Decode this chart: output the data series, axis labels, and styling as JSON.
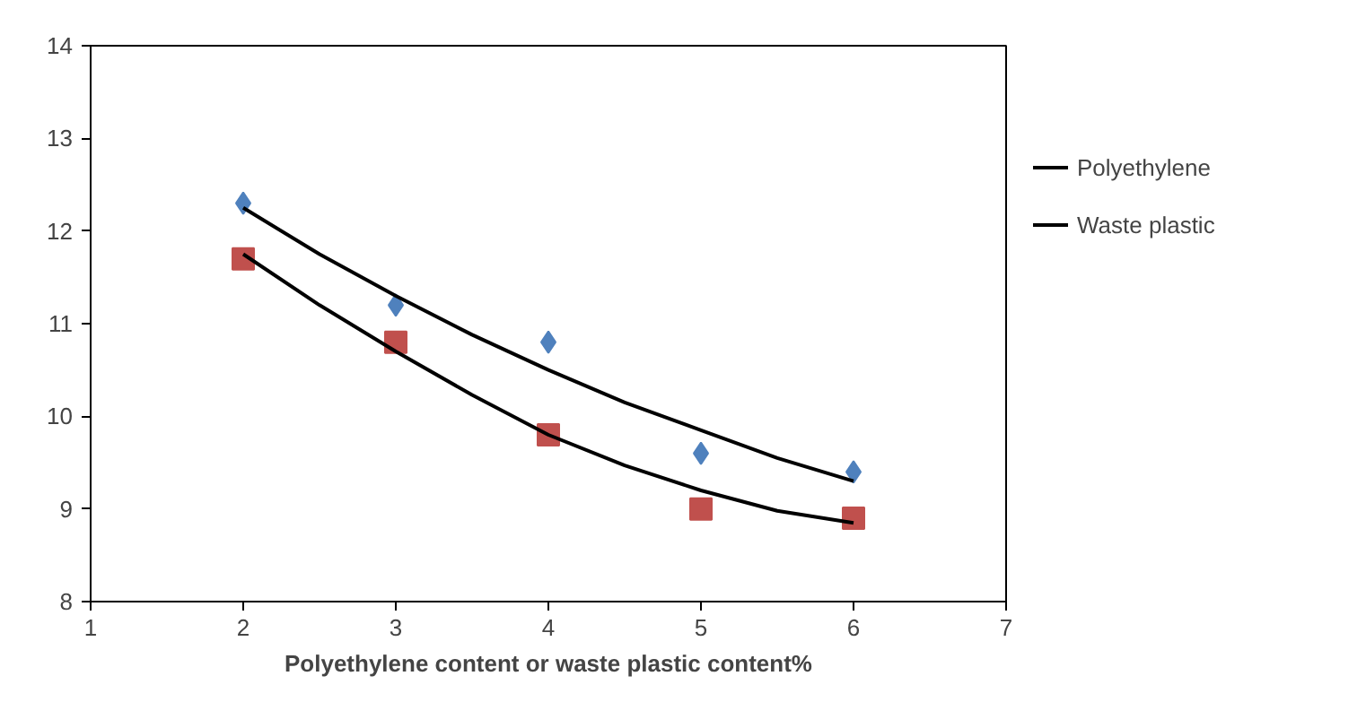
{
  "chart_data": {
    "type": "scatter",
    "xlabel": "Polyethylene content or waste plastic content%",
    "xlim": [
      1,
      7
    ],
    "xticks": [
      1,
      2,
      3,
      4,
      5,
      6,
      7
    ],
    "ylim": [
      8,
      14
    ],
    "yticks": [
      8,
      9,
      10,
      11,
      12,
      13,
      14
    ],
    "grid": false,
    "legend": "right",
    "series": [
      {
        "marker": "diamond",
        "color": "#4f81bd",
        "x": [
          2,
          3,
          4,
          5,
          6
        ],
        "values": [
          12.3,
          11.2,
          10.8,
          9.6,
          9.4
        ]
      },
      {
        "marker": "square",
        "color": "#c0504d",
        "x": [
          2,
          3,
          4,
          5,
          6
        ],
        "values": [
          11.7,
          10.8,
          9.8,
          9.0,
          8.9
        ]
      },
      {
        "type": "line",
        "name": "Polyethylene",
        "color": "#000000",
        "x": [
          2,
          2.5,
          3,
          3.5,
          4,
          4.5,
          5,
          5.5,
          6
        ],
        "values": [
          12.25,
          11.75,
          11.3,
          10.88,
          10.5,
          10.15,
          9.85,
          9.55,
          9.3
        ]
      },
      {
        "type": "line",
        "name": "Waste plastic",
        "color": "#000000",
        "x": [
          2,
          2.5,
          3,
          3.5,
          4,
          4.5,
          5,
          5.5,
          6
        ],
        "values": [
          11.75,
          11.2,
          10.7,
          10.23,
          9.8,
          9.47,
          9.2,
          8.98,
          8.85
        ]
      }
    ]
  }
}
